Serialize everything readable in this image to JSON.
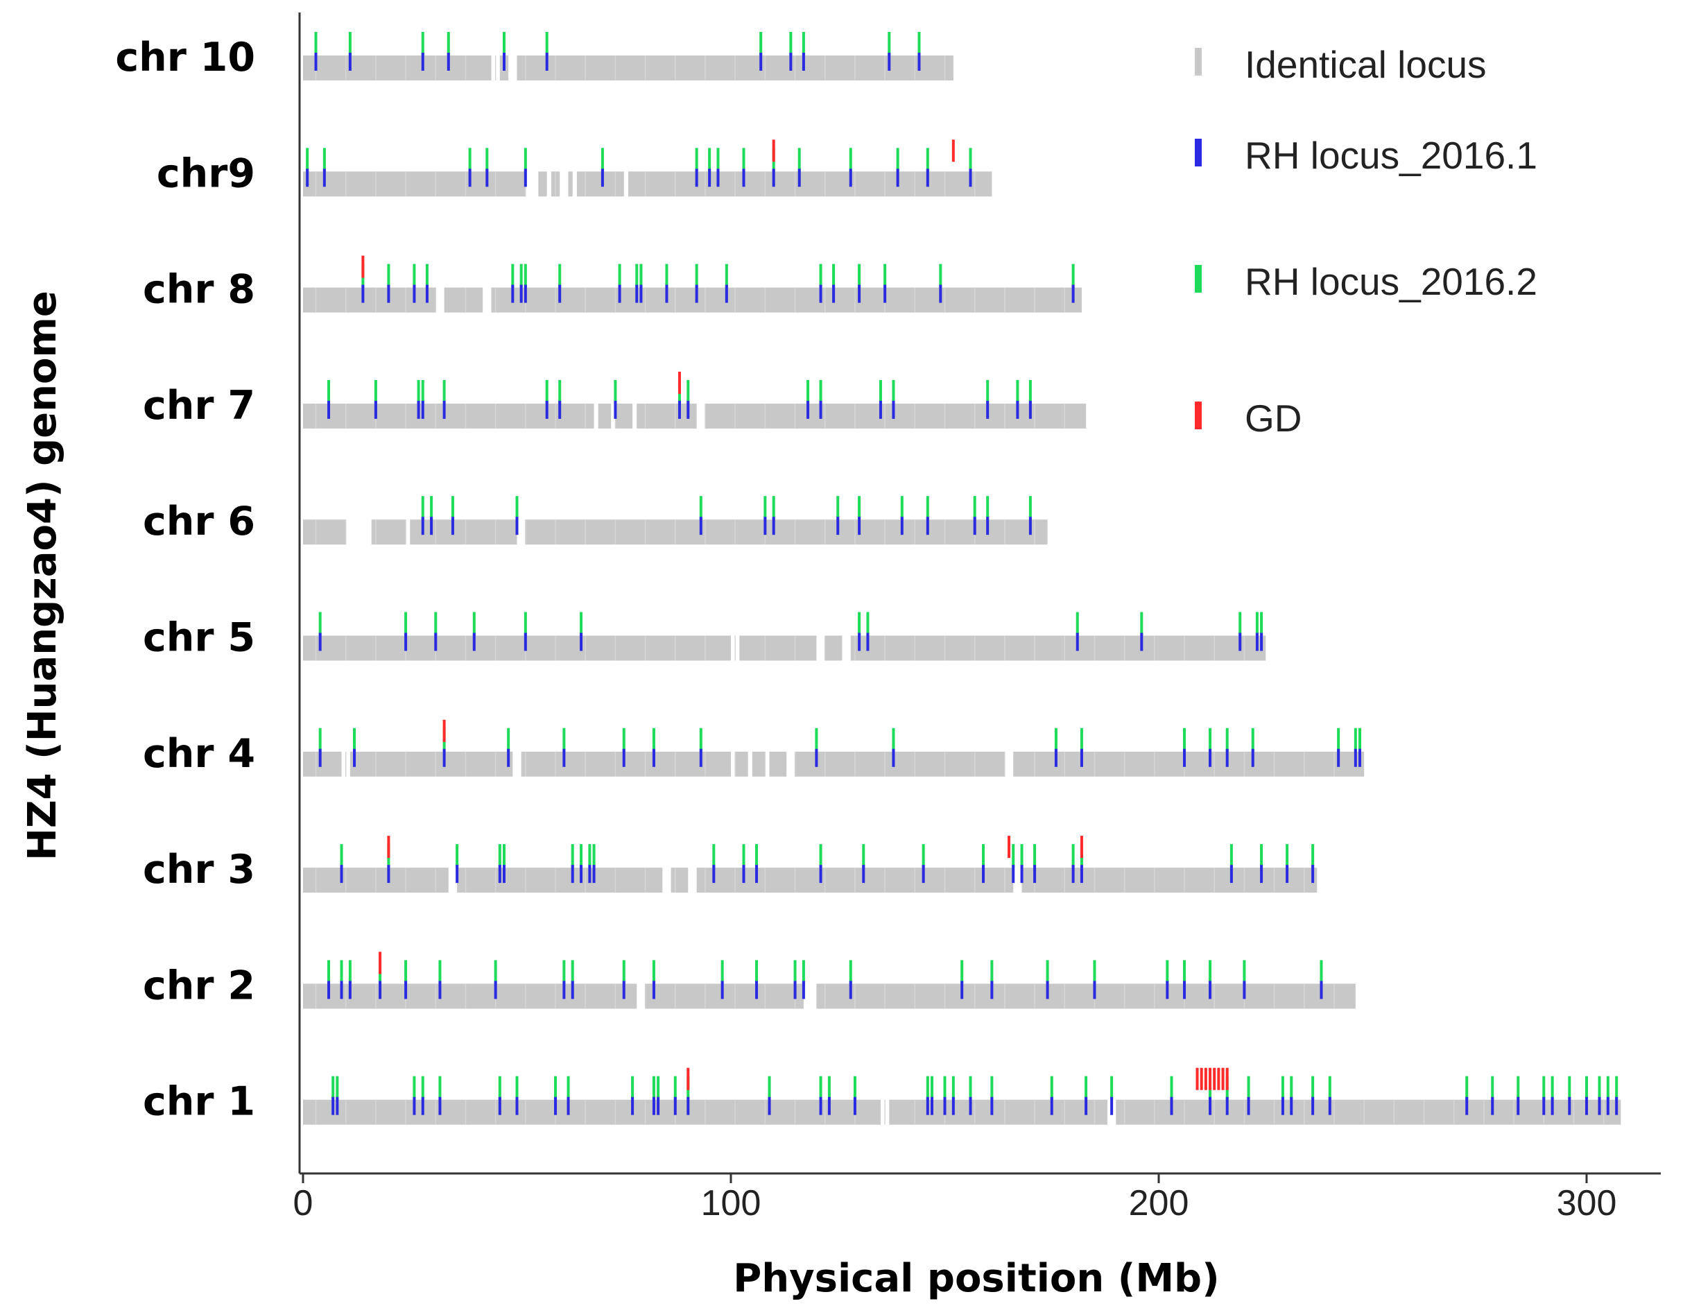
{
  "chart_data": {
    "type": "chromosome-map",
    "xlabel": "Physical position (Mb)",
    "ylabel": "HZ4 (Huangzao4) genome",
    "xlim": [
      0,
      320
    ],
    "xticks": [
      0,
      100,
      200,
      300
    ],
    "xtick_labels": [
      "0",
      "100",
      "200",
      "300"
    ],
    "legend": [
      {
        "key": "identical",
        "label": "Identical locus",
        "color": "#c8c8c8"
      },
      {
        "key": "rh1",
        "label": "RH locus_2016.1",
        "color": "#2a2ae0"
      },
      {
        "key": "rh2",
        "label": "RH locus_2016.2",
        "color": "#1edc5a"
      },
      {
        "key": "gd",
        "label": "GD",
        "color": "#ff2a2a"
      }
    ],
    "chromosomes": [
      {
        "name": "chr 10",
        "length": 152,
        "gaps": [
          [
            44,
            46
          ],
          [
            48,
            50
          ]
        ],
        "rh": [
          3,
          11,
          28,
          34,
          47,
          57,
          107,
          114,
          117,
          137,
          144
        ],
        "gd": []
      },
      {
        "name": "chr9",
        "length": 161,
        "gaps": [
          [
            52,
            55
          ],
          [
            57,
            58
          ],
          [
            60,
            62
          ],
          [
            63,
            64
          ],
          [
            75,
            76
          ]
        ],
        "rh": [
          1,
          5,
          39,
          43,
          52,
          70,
          92,
          95,
          97,
          103,
          110,
          116,
          128,
          139,
          146,
          156
        ],
        "gd": [
          110,
          152
        ]
      },
      {
        "name": "chr 8",
        "length": 182,
        "gaps": [
          [
            31,
            33
          ],
          [
            42,
            44
          ]
        ],
        "rh": [
          14,
          20,
          26,
          29,
          49,
          51,
          52,
          60,
          74,
          78,
          79,
          85,
          92,
          99,
          121,
          124,
          130,
          136,
          149,
          180
        ],
        "gd": [
          14
        ]
      },
      {
        "name": "chr 7",
        "length": 183,
        "gaps": [
          [
            68,
            69
          ],
          [
            72,
            73
          ],
          [
            77,
            78
          ],
          [
            92,
            94
          ]
        ],
        "rh": [
          6,
          17,
          27,
          28,
          33,
          57,
          60,
          73,
          88,
          90,
          118,
          121,
          135,
          138,
          160,
          167,
          170
        ],
        "gd": [
          88
        ]
      },
      {
        "name": "chr 6",
        "length": 174,
        "gaps": [
          [
            10,
            16
          ],
          [
            24,
            25
          ],
          [
            50,
            52
          ]
        ],
        "rh": [
          28,
          30,
          35,
          50,
          93,
          108,
          110,
          125,
          130,
          140,
          146,
          157,
          160,
          170
        ],
        "gd": []
      },
      {
        "name": "chr 5",
        "length": 225,
        "gaps": [
          [
            100,
            102
          ],
          [
            120,
            122
          ],
          [
            126,
            128
          ]
        ],
        "rh": [
          4,
          24,
          31,
          40,
          52,
          65,
          130,
          132,
          181,
          196,
          219,
          223,
          224
        ],
        "gd": []
      },
      {
        "name": "chr 4",
        "length": 248,
        "gaps": [
          [
            9,
            11
          ],
          [
            49,
            51
          ],
          [
            100,
            101
          ],
          [
            104,
            105
          ],
          [
            108,
            109
          ],
          [
            113,
            115
          ],
          [
            164,
            166
          ]
        ],
        "rh": [
          4,
          12,
          33,
          48,
          61,
          75,
          82,
          93,
          120,
          138,
          176,
          182,
          206,
          212,
          216,
          222,
          242,
          246,
          247
        ],
        "gd": [
          33
        ]
      },
      {
        "name": "chr 3",
        "length": 237,
        "gaps": [
          [
            34,
            36
          ],
          [
            84,
            86
          ],
          [
            90,
            92
          ],
          [
            166,
            168
          ]
        ],
        "rh": [
          9,
          20,
          36,
          46,
          47,
          63,
          65,
          67,
          68,
          96,
          103,
          106,
          121,
          131,
          145,
          159,
          166,
          168,
          171,
          180,
          182,
          217,
          224,
          230,
          236
        ],
        "gd": [
          20,
          165,
          182
        ]
      },
      {
        "name": "chr 2",
        "length": 246,
        "gaps": [
          [
            78,
            80
          ],
          [
            117,
            120
          ]
        ],
        "rh": [
          6,
          9,
          11,
          18,
          24,
          32,
          45,
          61,
          63,
          75,
          82,
          98,
          106,
          115,
          117,
          128,
          154,
          161,
          174,
          185,
          202,
          206,
          212,
          220,
          238
        ],
        "gd": [
          18
        ]
      },
      {
        "name": "chr 1",
        "length": 308,
        "gaps": [
          [
            135,
            137
          ],
          [
            188,
            190
          ]
        ],
        "rh": [
          7,
          8,
          26,
          28,
          32,
          46,
          50,
          59,
          62,
          77,
          82,
          83,
          87,
          90,
          109,
          121,
          123,
          129,
          146,
          147,
          150,
          152,
          156,
          161,
          175,
          183,
          189,
          203,
          212,
          216,
          221,
          229,
          231,
          236,
          240,
          272,
          278,
          284,
          290,
          292,
          296,
          300,
          303,
          305,
          307
        ],
        "gd": [
          90,
          209,
          210,
          211,
          212,
          213,
          214,
          215,
          216
        ]
      }
    ]
  }
}
